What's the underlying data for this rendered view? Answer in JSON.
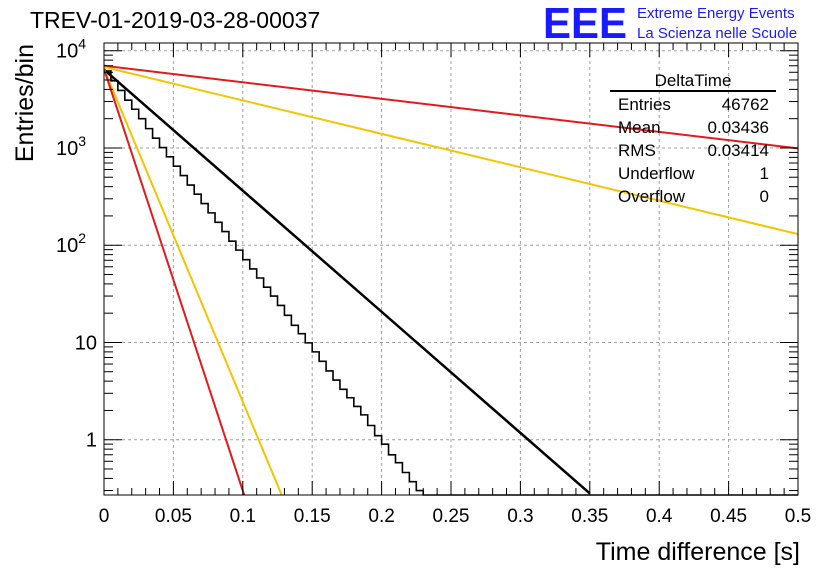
{
  "chart_data": {
    "type": "histogram",
    "title": "TREV-01-2019-03-28-00037",
    "xlabel": "Time difference [s]",
    "ylabel": "Entries/bin",
    "xlim": [
      0,
      0.5
    ],
    "ylim": [
      0.27,
      12000
    ],
    "yscale": "log",
    "grid": true,
    "x_ticks": [
      "0",
      "0.05",
      "0.1",
      "0.15",
      "0.2",
      "0.25",
      "0.3",
      "0.35",
      "0.4",
      "0.45",
      "0.5"
    ],
    "y_ticks": [
      {
        "value": 1,
        "base": "1",
        "exp": ""
      },
      {
        "value": 10,
        "base": "10",
        "exp": ""
      },
      {
        "value": 100,
        "base": "10",
        "exp": "2"
      },
      {
        "value": 1000,
        "base": "10",
        "exp": "3"
      },
      {
        "value": 10000,
        "base": "10",
        "exp": "4"
      }
    ],
    "bin_width": 0.005,
    "histogram_values": [
      6200,
      4900,
      3900,
      3100,
      2500,
      2000,
      1580,
      1260,
      1010,
      810,
      650,
      520,
      415,
      335,
      268,
      215,
      172,
      138,
      110,
      89,
      71,
      57,
      46,
      37,
      30,
      24,
      19,
      15,
      12.3,
      9.9,
      8,
      6.4,
      5.1,
      4.1,
      3.3,
      2.7,
      2.2,
      1.8,
      1.4,
      1.1,
      0.9,
      0.7,
      0.58,
      0.46,
      0.37,
      0.3,
      0.24,
      0.2,
      0.16,
      0.13,
      0.1,
      0.08,
      0.06,
      0.05,
      0.04,
      0.03,
      0.02,
      0.02,
      0.01,
      0.01,
      0.01,
      0.01,
      0.01,
      0.01,
      0.01,
      0.01,
      0.01,
      0.01,
      0.01,
      0.01,
      0.01,
      0.01,
      0.01,
      0.01,
      0.01,
      0.01,
      0.01,
      0.01,
      0.01,
      0.01,
      0.01,
      0.01,
      0.01,
      0.01,
      0.01,
      0.01,
      0.01,
      0.01,
      0.01,
      0.01,
      0.01,
      0.01,
      0.01,
      0.01,
      0.01,
      0.01,
      0.01,
      0.01,
      0.01,
      0.01
    ],
    "fits": [
      {
        "color": "#000000",
        "x": [
          0,
          0.35
        ],
        "y": [
          6400,
          0.28
        ]
      },
      {
        "color": "#e31a1c",
        "x": [
          0,
          0.5
        ],
        "y": [
          7000,
          990
        ]
      },
      {
        "color": "#f5c400",
        "x": [
          0,
          0.5
        ],
        "y": [
          6800,
          130
        ]
      },
      {
        "color": "#f5c400",
        "x": [
          0,
          0.128
        ],
        "y": [
          6500,
          0.27
        ]
      },
      {
        "color": "#e31a1c",
        "x": [
          0,
          0.101
        ],
        "y": [
          6500,
          0.27
        ]
      }
    ],
    "stats_box": {
      "name": "DeltaTime",
      "rows": [
        {
          "label": "Entries",
          "value": "46762"
        },
        {
          "label": "Mean",
          "value": "0.03436"
        },
        {
          "label": "RMS",
          "value": "0.03414"
        },
        {
          "label": "Underflow",
          "value": "1"
        },
        {
          "label": "Overflow",
          "value": "0"
        }
      ]
    }
  },
  "branding": {
    "logo_text": "EEE",
    "line1": "Extreme Energy Events",
    "line2": "La Scienza nelle Scuole"
  },
  "colors": {
    "brand_blue": "#1a1aff",
    "histogram": "#000000",
    "grid": "#a0a0a0"
  }
}
